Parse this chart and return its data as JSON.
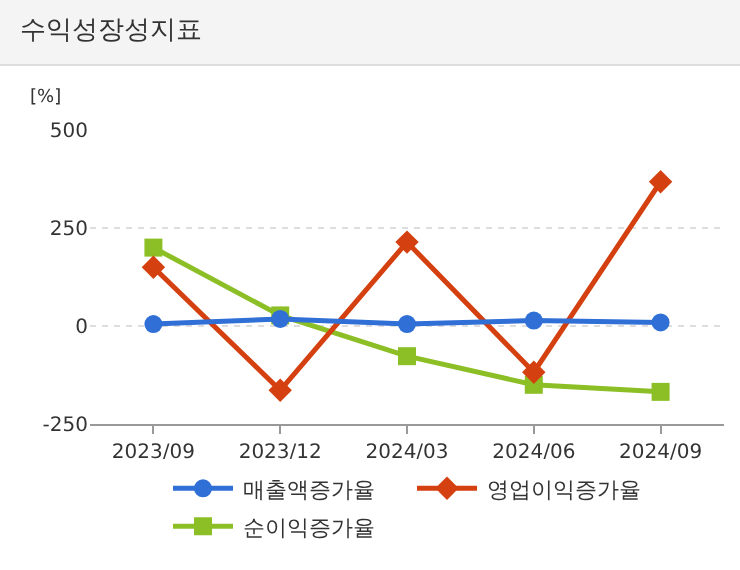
{
  "chart_data": {
    "type": "line",
    "title": "수익성장성지표",
    "ylabel": "[%]",
    "categories": [
      "2023/09",
      "2023/12",
      "2024/03",
      "2024/06",
      "2024/09"
    ],
    "series": [
      {
        "name": "매출액증가율",
        "color": "#2f6fd6",
        "marker": "circle",
        "values": [
          5,
          18,
          5,
          14,
          9
        ]
      },
      {
        "name": "영업이익증가율",
        "color": "#d4400f",
        "marker": "diamond",
        "values": [
          150,
          -164,
          214,
          -118,
          368
        ]
      },
      {
        "name": "순이익증가율",
        "color": "#8cbf26",
        "marker": "square",
        "values": [
          200,
          27,
          -77,
          -150,
          -168
        ]
      }
    ],
    "ylim": [
      -250,
      500
    ],
    "yticks": [
      -250,
      0,
      250,
      500
    ],
    "grid": "y",
    "legend": "bottom"
  }
}
